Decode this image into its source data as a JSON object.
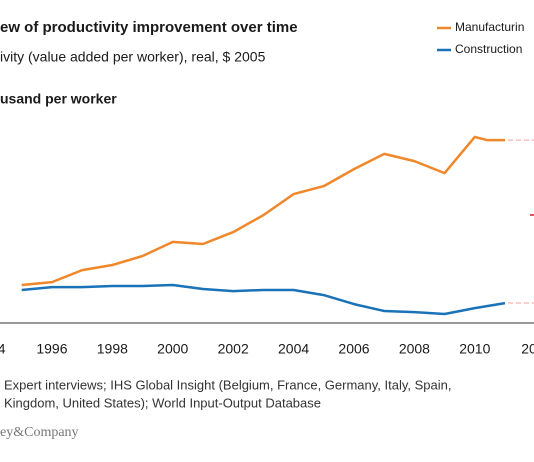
{
  "chart_data": {
    "type": "line",
    "title": "ew of productivity improvement over time",
    "subtitle": "ivity (value added per worker), real, $ 2005",
    "y_label": "usand per worker",
    "source": [
      "Expert interviews; IHS Global Insight (Belgium, France, Germany, Italy, Spain,",
      "Kingdom, United States); World Input-Output Database"
    ],
    "logo": "ey&Company",
    "xlim": [
      1994.28,
      2011.96
    ],
    "xticks": [
      {
        "value": 1994,
        "label": "4"
      },
      1996,
      1998,
      2000,
      2002,
      2004,
      2006,
      2008,
      2010,
      {
        "value": 2012,
        "label": "20"
      }
    ],
    "ylim": [
      0,
      100
    ],
    "series": [
      {
        "name": "Manufacturin",
        "color": "#f0872a",
        "x": [
          1995,
          1996,
          1997,
          1998,
          1999,
          2000,
          2001,
          2002,
          2003,
          2004,
          2005,
          2006,
          2007,
          2008,
          2009,
          2010,
          2010.4,
          2011
        ],
        "values": [
          18.1,
          19.5,
          25.2,
          27.6,
          31.9,
          38.6,
          37.6,
          43.3,
          51.4,
          61.4,
          65.2,
          73.3,
          80.5,
          77.1,
          71.4,
          88.6,
          87.1,
          87.1
        ]
      },
      {
        "name": "Construction",
        "color": "#1a73b8",
        "x": [
          1995,
          1996,
          1997,
          1998,
          1999,
          2000,
          2001,
          2002,
          2003,
          2004,
          2005,
          2006,
          2007,
          2008,
          2009,
          2010,
          2011
        ],
        "values": [
          15.7,
          17.1,
          17.1,
          17.6,
          17.6,
          18.1,
          16.2,
          15.2,
          15.7,
          15.7,
          13.3,
          9.0,
          5.7,
          5.2,
          4.3,
          7.1,
          9.5
        ]
      }
    ]
  }
}
